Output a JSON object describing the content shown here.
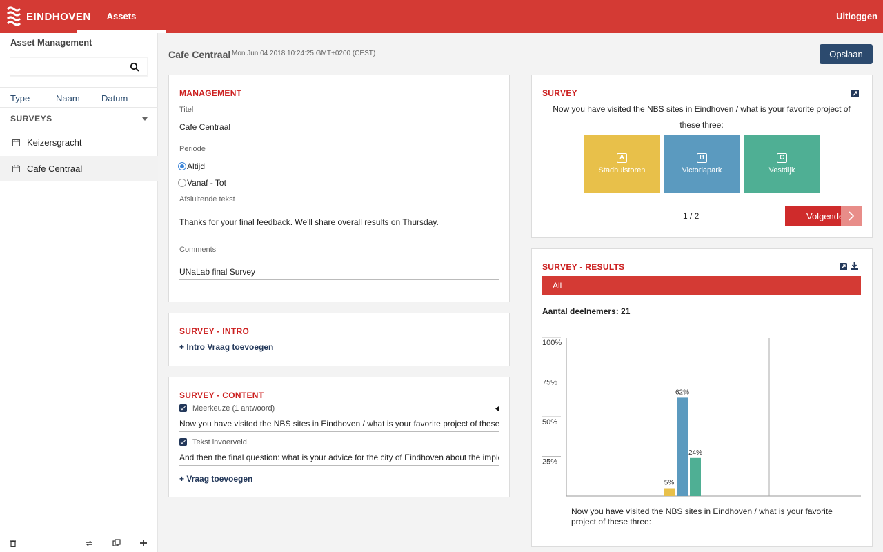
{
  "topbar": {
    "logo_text": "EINDHOVEN",
    "tab_assets": "Assets",
    "logout": "Uitloggen",
    "color": "#d43a34"
  },
  "sidebar": {
    "title": "Asset Management",
    "search_placeholder": "",
    "columns": [
      "Type",
      "Naam",
      "Datum"
    ],
    "group_label": "SURVEYS",
    "items": [
      {
        "label": "Keizersgracht",
        "icon": "calendar-icon",
        "active": false
      },
      {
        "label": "Cafe Centraal",
        "icon": "calendar-icon",
        "active": true
      }
    ],
    "bottom_icons": [
      "trash-icon",
      "sync-icon",
      "copy-icon",
      "plus-icon"
    ]
  },
  "header": {
    "title": "Cafe Centraal",
    "date": "Mon Jun 04 2018 10:24:25 GMT+0200 (CEST)",
    "save_label": "Opslaan"
  },
  "management": {
    "title": "MANAGEMENT",
    "titel_label": "Titel",
    "titel_value": "Cafe Centraal",
    "periode_label": "Periode",
    "periode_options": [
      "Altijd",
      "Vanaf - Tot"
    ],
    "periode_selected": "Altijd",
    "afsluitende_label": "Afsluitende tekst",
    "afsluitende_value": "Thanks for your final feedback. We'll share overall results on Thursday.",
    "comments_label": "Comments",
    "comments_value": "UNaLab final Survey"
  },
  "intro": {
    "title": "SURVEY - INTRO",
    "add_label": "+ Intro Vraag toevoegen"
  },
  "content": {
    "title": "SURVEY - CONTENT",
    "questions": [
      {
        "type_label": "Meerkeuze (1 antwoord)",
        "text": "Now you have visited the NBS sites in Eindhoven / what is your favorite project of these three:",
        "checked": true
      },
      {
        "type_label": "Tekst invoerveld",
        "text": "And then the final question: what is your advice for the city of Eindhoven about the implementation of nature-based solutions?",
        "checked": true
      }
    ],
    "add_label": "+ Vraag toevoegen"
  },
  "survey": {
    "title": "SURVEY",
    "question": "Now you have visited the NBS sites in Eindhoven / what is your favorite project of these three:",
    "options": [
      {
        "letter": "A",
        "label": "Stadhuistoren",
        "color": "#e8c04a"
      },
      {
        "letter": "B",
        "label": "Victoriapark",
        "color": "#5b9abf"
      },
      {
        "letter": "C",
        "label": "Vestdijk",
        "color": "#4faf94"
      }
    ],
    "pager": "1 / 2",
    "next_label": "Volgende"
  },
  "results": {
    "title": "SURVEY - RESULTS",
    "filter_label": "All",
    "participants": "Aantal deelnemers: 21",
    "caption": "Now you have visited the NBS sites in Eindhoven / what is your favorite project of these three:"
  },
  "chart_data": {
    "type": "bar",
    "categories": [
      "Stadhuistoren",
      "Victoriapark",
      "Vestdijk"
    ],
    "values": [
      5,
      62,
      24
    ],
    "value_labels": [
      "5%",
      "62%",
      "24%"
    ],
    "colors": [
      "#e8c04a",
      "#5b9abf",
      "#4faf94"
    ],
    "y_ticks": [
      "25%",
      "50%",
      "75%",
      "100%"
    ],
    "ylim": [
      0,
      100
    ]
  }
}
